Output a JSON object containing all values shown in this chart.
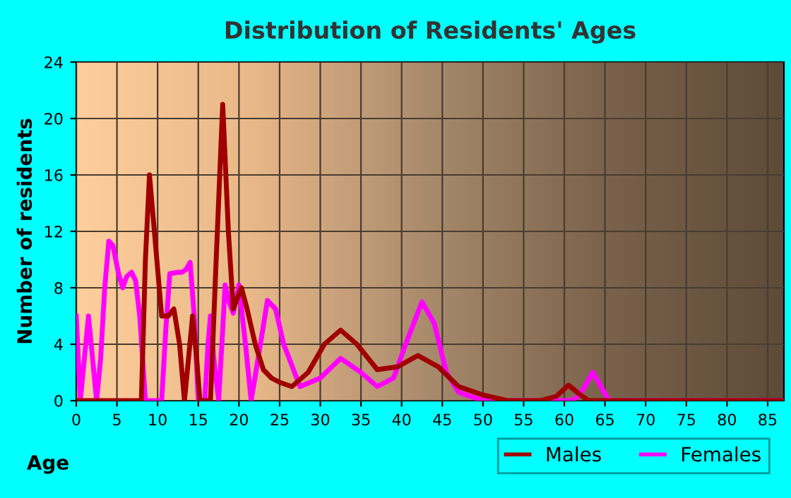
{
  "chart_data": {
    "type": "line",
    "title": "Distribution of Residents' Ages",
    "xlabel": "Age",
    "ylabel": "Number of residents",
    "xlim": [
      0,
      87
    ],
    "xticks": [
      0,
      5,
      10,
      15,
      20,
      25,
      30,
      35,
      40,
      45,
      50,
      55,
      60,
      65,
      70,
      75,
      80,
      85
    ],
    "ylim": [
      0,
      24
    ],
    "yticks": [
      0,
      4,
      8,
      12,
      16,
      20,
      24
    ],
    "grid": true,
    "legend": "bottom right",
    "marker": "none",
    "line_style": "solid",
    "series": [
      {
        "name": "Males",
        "color": "#a00000",
        "x": [
          0,
          7,
          8,
          8.5,
          9,
          9.6,
          10.5,
          11.3,
          12,
          12.7,
          13.3,
          13.8,
          14.3,
          14.8,
          15.2,
          16.5,
          17.2,
          18,
          18.7,
          19.3,
          20.3,
          21,
          22,
          23,
          24,
          25,
          26.5,
          28.5,
          30.5,
          32.5,
          34.5,
          37,
          39.5,
          42,
          44.5,
          47,
          50,
          53,
          57,
          59,
          60.5,
          62,
          63,
          87
        ],
        "values": [
          0,
          0,
          0,
          10,
          16,
          12,
          6,
          6,
          6.5,
          4,
          0,
          3,
          6,
          3,
          0,
          0,
          10,
          21,
          12,
          6.5,
          8,
          6.5,
          4,
          2.2,
          1.6,
          1.3,
          1,
          2,
          4,
          5,
          4,
          2.2,
          2.4,
          3.2,
          2.4,
          1,
          0.4,
          0,
          0,
          0.3,
          1.1,
          0.4,
          0,
          0
        ]
      },
      {
        "name": "Females",
        "color": "#ff00ff",
        "x": [
          0,
          0.5,
          1,
          1.5,
          2,
          2.5,
          3,
          3.5,
          4,
          4.5,
          5.2,
          5.7,
          6.2,
          6.8,
          7.3,
          7.8,
          8.5,
          10.5,
          11,
          11.5,
          12.5,
          13,
          13.5,
          14,
          14.5,
          15,
          15.8,
          16.2,
          16.5,
          16.9,
          17.5,
          18,
          18.3,
          18.8,
          19.3,
          20,
          20.8,
          21.5,
          22.5,
          23.5,
          24.5,
          25.5,
          27.5,
          30,
          32.5,
          35,
          37,
          39,
          40.5,
          42.5,
          44,
          45.5,
          47,
          50,
          58,
          61,
          62,
          63.5,
          64.5,
          65.5,
          87
        ],
        "values": [
          6,
          0,
          3,
          6,
          3,
          0,
          3,
          8,
          11.3,
          11,
          9,
          8,
          8.8,
          9.1,
          8.5,
          6,
          0,
          0,
          5,
          9,
          9.1,
          9.1,
          9.3,
          9.8,
          6,
          0,
          0,
          4,
          6,
          3,
          0,
          5,
          8.2,
          7,
          6.2,
          8.2,
          4,
          0,
          3.5,
          7.1,
          6.5,
          4,
          1,
          1.6,
          3,
          2,
          1,
          1.6,
          4,
          7,
          5.5,
          2,
          0.6,
          0,
          0,
          0,
          0.5,
          2,
          1,
          0,
          0
        ]
      }
    ]
  }
}
